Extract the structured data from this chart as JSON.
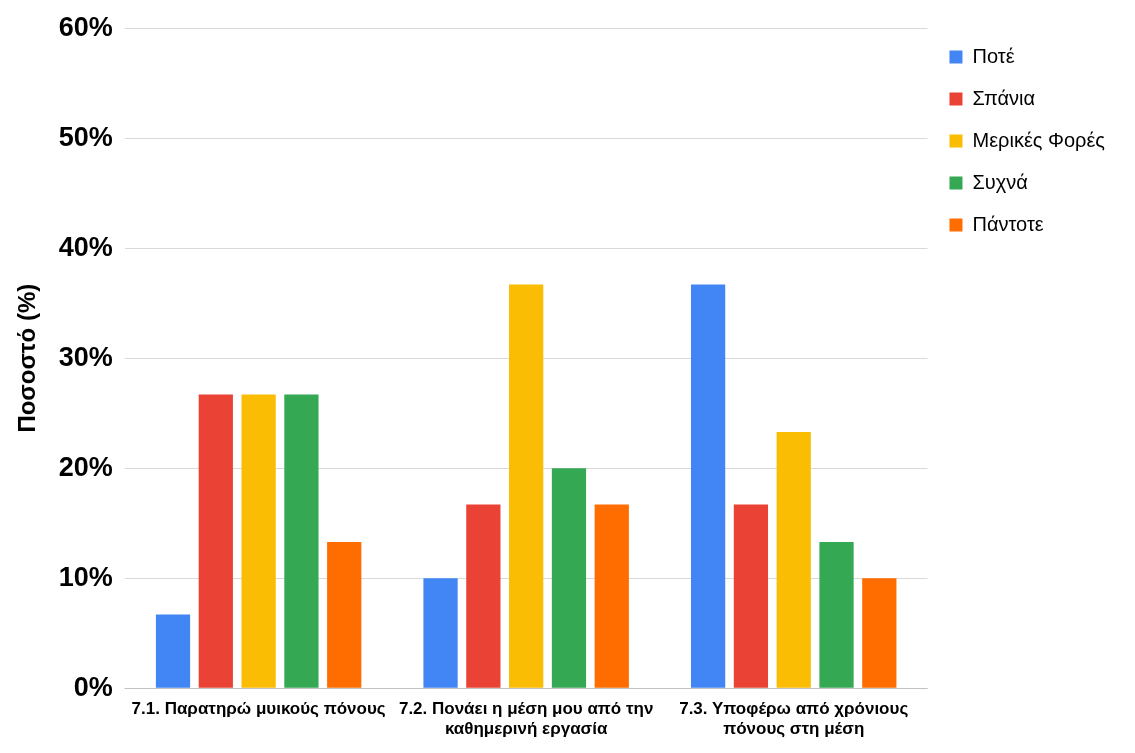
{
  "chart_data": {
    "type": "bar",
    "ylabel": "Ποσοστό (%)",
    "categories": [
      "7.1. Παρατηρώ μυικούς πόνους",
      "7.2. Πονάει η μέση μου από την καθημερινή εργασία",
      "7.3. Υποφέρω από χρόνιους πόνους στη μέση"
    ],
    "series": [
      {
        "name": "Ποτέ",
        "color": "#4285f4",
        "values": [
          6.7,
          10,
          36.7
        ]
      },
      {
        "name": "Σπάνια",
        "color": "#ea4335",
        "values": [
          26.7,
          16.7,
          16.7
        ]
      },
      {
        "name": "Μερικές Φορές",
        "color": "#fbbc04",
        "values": [
          26.7,
          36.7,
          23.3
        ]
      },
      {
        "name": "Συχνά",
        "color": "#34a853",
        "values": [
          26.7,
          20,
          13.3
        ]
      },
      {
        "name": "Πάντοτε",
        "color": "#ff6d01",
        "values": [
          13.3,
          16.7,
          10
        ]
      }
    ],
    "ylim": [
      0,
      60
    ],
    "yticks": [
      {
        "value": 0,
        "label": "0%"
      },
      {
        "value": 10,
        "label": "10%"
      },
      {
        "value": 20,
        "label": "20%"
      },
      {
        "value": 30,
        "label": "30%"
      },
      {
        "value": 40,
        "label": "40%"
      },
      {
        "value": 50,
        "label": "50%"
      },
      {
        "value": 60,
        "label": "60%"
      }
    ],
    "grid": "y",
    "legend": "right"
  }
}
